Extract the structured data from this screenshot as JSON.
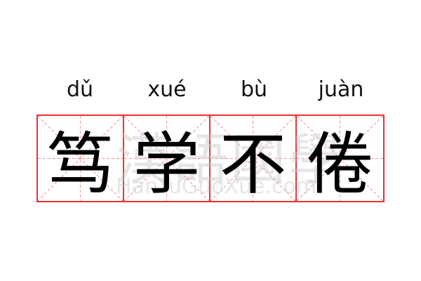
{
  "words": [
    {
      "pinyin": "dǔ",
      "hanzi": "笃"
    },
    {
      "pinyin": "xué",
      "hanzi": "学"
    },
    {
      "pinyin": "bù",
      "hanzi": "不"
    },
    {
      "pinyin": "juàn",
      "hanzi": "倦"
    }
  ],
  "watermark": {
    "chinese": "漢語國學",
    "latin": "HanYuGuoXue.com"
  },
  "colors": {
    "grid_border": "#f03030",
    "guide_lines": "#f6a0a0",
    "text": "#000000"
  }
}
